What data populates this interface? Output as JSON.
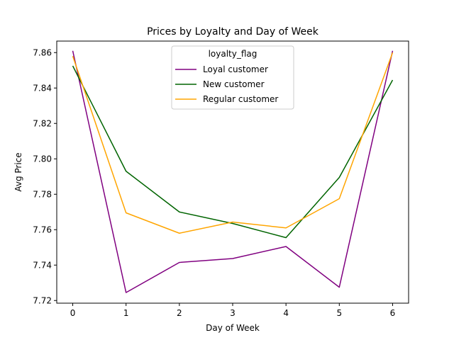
{
  "chart_data": {
    "type": "line",
    "title": "Prices by Loyalty and Day of Week",
    "xlabel": "Day of Week",
    "ylabel": "Avg Price",
    "x": [
      0,
      1,
      2,
      3,
      4,
      5,
      6
    ],
    "xticks": [
      "0",
      "1",
      "2",
      "3",
      "4",
      "5",
      "6"
    ],
    "yticks": [
      "7.72",
      "7.74",
      "7.76",
      "7.78",
      "7.80",
      "7.82",
      "7.84",
      "7.86"
    ],
    "xlim": [
      -0.3,
      6.3
    ],
    "ylim": [
      7.7185,
      7.8665
    ],
    "grid": false,
    "legend": {
      "title": "loyalty_flag",
      "position": "top-center"
    },
    "series": [
      {
        "name": "Loyal customer",
        "color": "#800080",
        "values": [
          7.861,
          7.7245,
          7.7415,
          7.7437,
          7.7505,
          7.7275,
          7.861
        ]
      },
      {
        "name": "New customer",
        "color": "#006400",
        "values": [
          7.8525,
          7.793,
          7.77,
          7.7635,
          7.7555,
          7.7895,
          7.8445
        ]
      },
      {
        "name": "Regular customer",
        "color": "#FFA500",
        "values": [
          7.858,
          7.7695,
          7.758,
          7.7643,
          7.761,
          7.7775,
          7.86
        ]
      }
    ]
  }
}
